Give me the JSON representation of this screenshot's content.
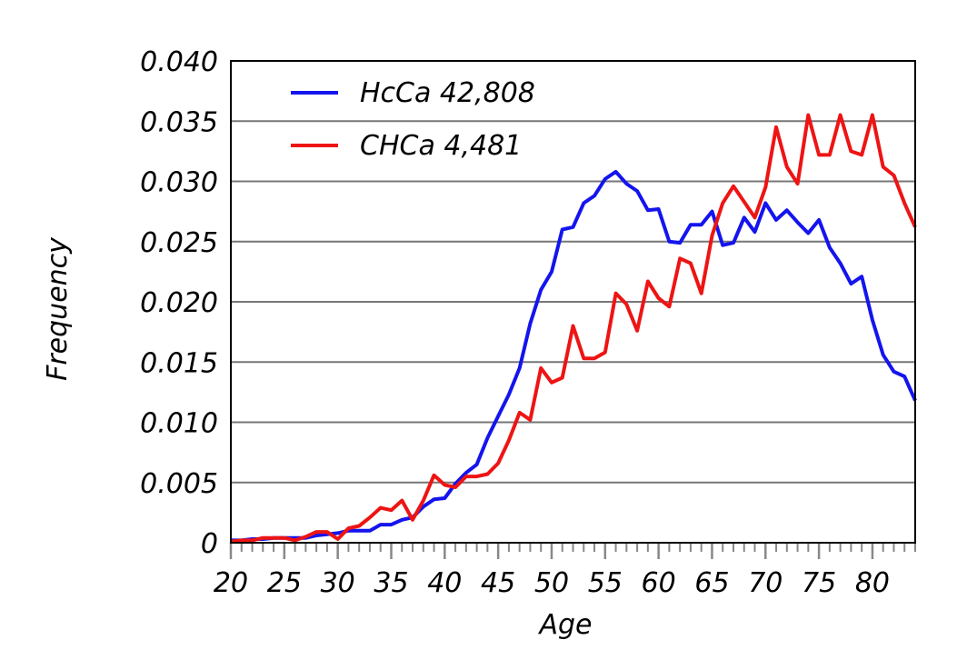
{
  "chart_data": {
    "type": "line",
    "xlabel": "Age",
    "ylabel": "Frequency",
    "xlim": [
      20,
      84
    ],
    "ylim": [
      0,
      0.04
    ],
    "x_ticks": [
      20,
      25,
      30,
      35,
      40,
      45,
      50,
      55,
      60,
      65,
      70,
      75,
      80
    ],
    "x_tick_labels": [
      "20",
      "25",
      "30",
      "35",
      "40",
      "45",
      "50",
      "55",
      "60",
      "65",
      "70",
      "75",
      "80"
    ],
    "y_ticks": [
      0,
      0.005,
      0.01,
      0.015,
      0.02,
      0.025,
      0.03,
      0.035,
      0.04
    ],
    "y_tick_labels": [
      "0",
      "0.005",
      "0.010",
      "0.015",
      "0.020",
      "0.025",
      "0.030",
      "0.035",
      "0.040"
    ],
    "grid": "horizontal",
    "legend_position": "top-left",
    "series": [
      {
        "name": "HcCa 42,808",
        "color": "#1414ee",
        "x": [
          20,
          21,
          22,
          23,
          24,
          25,
          26,
          27,
          28,
          29,
          30,
          31,
          32,
          33,
          34,
          35,
          36,
          37,
          38,
          39,
          40,
          41,
          42,
          43,
          44,
          45,
          46,
          47,
          48,
          49,
          50,
          51,
          52,
          53,
          54,
          55,
          56,
          57,
          58,
          59,
          60,
          61,
          62,
          63,
          64,
          65,
          66,
          67,
          68,
          69,
          70,
          71,
          72,
          73,
          74,
          75,
          76,
          77,
          78,
          79,
          80,
          81,
          82,
          83,
          84
        ],
        "y": [
          0.0002,
          0.0002,
          0.0003,
          0.0003,
          0.0004,
          0.0004,
          0.0004,
          0.0004,
          0.0006,
          0.0007,
          0.0008,
          0.001,
          0.001,
          0.001,
          0.0015,
          0.0015,
          0.0019,
          0.0021,
          0.003,
          0.0036,
          0.0037,
          0.0049,
          0.0058,
          0.0065,
          0.0087,
          0.0105,
          0.0123,
          0.0145,
          0.0182,
          0.021,
          0.0225,
          0.026,
          0.0262,
          0.0282,
          0.0288,
          0.0302,
          0.0308,
          0.0298,
          0.0292,
          0.0276,
          0.0277,
          0.025,
          0.0249,
          0.0264,
          0.0264,
          0.0275,
          0.0247,
          0.0249,
          0.027,
          0.0258,
          0.0282,
          0.0268,
          0.0276,
          0.0266,
          0.0257,
          0.0268,
          0.0245,
          0.0232,
          0.0215,
          0.0221,
          0.0185,
          0.0156,
          0.0142,
          0.0138,
          0.0118
        ]
      },
      {
        "name": "CHCa 4,481",
        "color": "#ee1414",
        "x": [
          20,
          21,
          22,
          23,
          24,
          25,
          26,
          27,
          28,
          29,
          30,
          31,
          32,
          33,
          34,
          35,
          36,
          37,
          38,
          39,
          40,
          41,
          42,
          43,
          44,
          45,
          46,
          47,
          48,
          49,
          50,
          51,
          52,
          53,
          54,
          55,
          56,
          57,
          58,
          59,
          60,
          61,
          62,
          63,
          64,
          65,
          66,
          67,
          68,
          69,
          70,
          71,
          72,
          73,
          74,
          75,
          76,
          77,
          78,
          79,
          80,
          81,
          82,
          83,
          84
        ],
        "y": [
          0.0001,
          0.0002,
          0.0002,
          0.0004,
          0.0004,
          0.0004,
          0.0002,
          0.0005,
          0.0009,
          0.0009,
          0.0003,
          0.0012,
          0.0014,
          0.0021,
          0.0029,
          0.0027,
          0.0035,
          0.0019,
          0.0035,
          0.0056,
          0.0048,
          0.0046,
          0.0055,
          0.0055,
          0.0057,
          0.0066,
          0.0085,
          0.0108,
          0.0102,
          0.0145,
          0.0133,
          0.0137,
          0.018,
          0.0153,
          0.0153,
          0.0158,
          0.0207,
          0.0198,
          0.0176,
          0.0217,
          0.0203,
          0.0196,
          0.0236,
          0.0232,
          0.0207,
          0.0255,
          0.0282,
          0.0296,
          0.0283,
          0.027,
          0.0295,
          0.0345,
          0.0312,
          0.0298,
          0.0355,
          0.0322,
          0.0322,
          0.0355,
          0.0325,
          0.0322,
          0.0355,
          0.0312,
          0.0305,
          0.0282,
          0.0262
        ]
      }
    ]
  }
}
